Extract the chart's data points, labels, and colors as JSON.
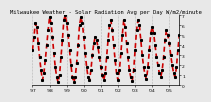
{
  "title": "Milwaukee Weather - Solar Radiation Avg per Day W/m2/minute",
  "background_color": "#e8e8e8",
  "plot_bg_color": "#e8e8e8",
  "grid_color": "#888888",
  "line_color": "#cc0000",
  "marker_color": "#000000",
  "y_values": [
    3.5,
    4.8,
    6.2,
    5.8,
    4.2,
    2.8,
    1.5,
    0.5,
    1.2,
    2.5,
    4.0,
    5.5,
    6.8,
    6.2,
    4.8,
    3.2,
    1.8,
    0.8,
    0.3,
    1.0,
    2.8,
    4.5,
    6.5,
    7.0,
    6.2,
    5.0,
    3.5,
    2.0,
    0.8,
    0.3,
    0.8,
    2.2,
    4.0,
    6.0,
    6.8,
    6.2,
    4.8,
    3.2,
    1.8,
    0.8,
    0.5,
    1.5,
    3.0,
    4.2,
    4.8,
    4.5,
    3.8,
    2.8,
    1.8,
    1.0,
    0.5,
    1.2,
    2.8,
    4.5,
    6.0,
    6.5,
    5.5,
    4.0,
    2.5,
    1.2,
    0.5,
    1.5,
    3.2,
    5.0,
    6.5,
    5.8,
    4.2,
    2.8,
    1.5,
    0.8,
    0.4,
    1.5,
    3.5,
    5.5,
    6.5,
    6.0,
    4.5,
    3.0,
    1.8,
    1.0,
    0.6,
    1.8,
    3.5,
    5.2,
    5.8,
    5.2,
    4.0,
    2.8,
    2.0,
    1.2,
    0.8,
    1.5,
    2.8,
    4.5,
    5.5,
    5.0,
    4.2,
    3.0,
    2.0,
    1.2,
    0.8,
    1.8,
    3.5,
    5.0
  ],
  "ylim": [
    0,
    7
  ],
  "ytick_labels": [
    "7",
    "6",
    "5",
    "4",
    "3",
    "2",
    "1",
    "0"
  ],
  "yticks": [
    7,
    6,
    5,
    4,
    3,
    2,
    1,
    0
  ],
  "title_fontsize": 4.0,
  "tick_fontsize": 3.2,
  "grid_positions": [
    0,
    12,
    24,
    36,
    48,
    60,
    72,
    84,
    96
  ],
  "x_tick_labels": [
    "'97",
    "'98",
    "'99",
    "'00",
    "'01",
    "'02",
    "'03",
    "'04",
    "'05"
  ],
  "line_width": 1.2,
  "dash_pattern": [
    3,
    2
  ]
}
